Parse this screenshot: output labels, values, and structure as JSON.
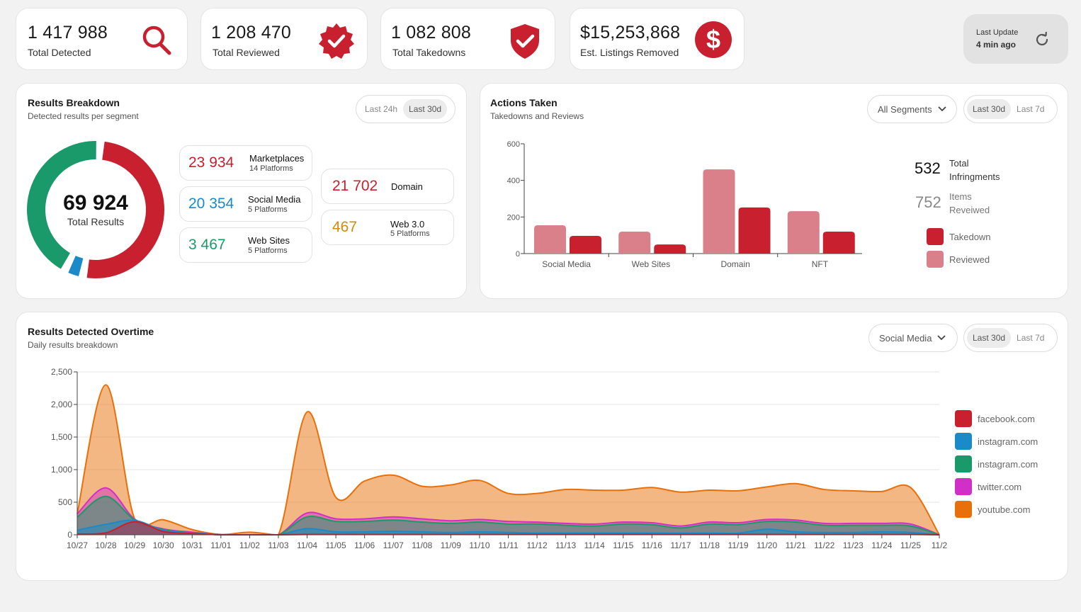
{
  "stats": [
    {
      "value": "1 417 988",
      "label": "Total Detected",
      "icon": "search-icon"
    },
    {
      "value": "1 208 470",
      "label": "Total Reviewed",
      "icon": "badge-check-icon"
    },
    {
      "value": "1 082 808",
      "label": "Total Takedowns",
      "icon": "shield-check-icon"
    },
    {
      "value": "$15,253,868",
      "label": "Est. Listings Removed",
      "icon": "dollar-icon"
    }
  ],
  "last_update": {
    "label": "Last Update",
    "value": "4 min ago",
    "icon": "refresh-icon"
  },
  "colors": {
    "accent": "#c8202f",
    "blue": "#1a8ac8",
    "green": "#1a9a6a",
    "gold": "#d08a10",
    "pink": "#d9808a"
  },
  "breakdown": {
    "title": "Results Breakdown",
    "subtitle": "Detected results per segment",
    "ranges": [
      "Last 24h",
      "Last 30d"
    ],
    "active_range": "Last 30d",
    "total_value": "69 924",
    "total_label": "Total Results",
    "segments": [
      {
        "value": "23 934",
        "name": "Marketplaces",
        "platforms": "14 Platforms",
        "color": "#c8202f"
      },
      {
        "value": "20 354",
        "name": "Social Media",
        "platforms": "5 Platforms",
        "color": "#1a8ac8"
      },
      {
        "value": "3 467",
        "name": "Web Sites",
        "platforms": "5 Platforms",
        "color": "#1a9a6a"
      },
      {
        "value": "21 702",
        "name": "Domain",
        "platforms": "",
        "color": "#c8202f"
      },
      {
        "value": "467",
        "name": "Web 3.0",
        "platforms": "5 Platforms",
        "color": "#d08a10"
      }
    ]
  },
  "actions": {
    "title": "Actions Taken",
    "subtitle": "Takedowns and Reviews",
    "segment_select": "All Segments",
    "ranges": [
      "Last 30d",
      "Last 7d"
    ],
    "active_range": "Last 30d",
    "total_infringments": {
      "value": "532",
      "label_line1": "Total",
      "label_line2": "Infringments"
    },
    "items_reviewed": {
      "value": "752",
      "label_line1": "Items",
      "label_line2": "Reveiwed"
    },
    "legend": [
      {
        "label": "Takedown",
        "color": "#c8202f"
      },
      {
        "label": "Reviewed",
        "color": "#d9808a"
      }
    ]
  },
  "overtime": {
    "title": "Results Detected Overtime",
    "subtitle": "Daily results breakdown",
    "segment_select": "Social Media",
    "ranges": [
      "Last 30d",
      "Last 7d"
    ],
    "active_range": "Last 30d",
    "legend": [
      {
        "label": "facebook.com",
        "color": "#c8202f"
      },
      {
        "label": "instagram.com",
        "color": "#1a8ac8"
      },
      {
        "label": "instagram.com",
        "color": "#1a9a6a"
      },
      {
        "label": "twitter.com",
        "color": "#d030c8"
      },
      {
        "label": "youtube.com",
        "color": "#e8700a"
      }
    ]
  },
  "chart_data": [
    {
      "type": "bar",
      "categories": [
        "Social Media",
        "Web Sites",
        "Domain",
        "NFT"
      ],
      "series": [
        {
          "name": "Reviewed",
          "values": [
            155,
            120,
            460,
            232
          ],
          "color": "#d9808a"
        },
        {
          "name": "Takedown",
          "values": [
            97,
            50,
            252,
            120
          ],
          "color": "#c8202f"
        }
      ],
      "yticks": [
        "0",
        "200",
        "400",
        "600"
      ],
      "ylim": [
        0,
        600
      ]
    },
    {
      "type": "area",
      "stacked": true,
      "x_ticks": [
        "10/27",
        "10/28",
        "10/29",
        "10/30",
        "10/31",
        "11/01",
        "11/02",
        "11/03",
        "11/04",
        "11/05",
        "11/06",
        "11/07",
        "11/08",
        "11/09",
        "11/10",
        "11/11",
        "11/12",
        "11/13",
        "11/14",
        "11/15",
        "11/16",
        "11/17",
        "11/18",
        "11/19",
        "11/20",
        "11/21",
        "11/22",
        "11/23",
        "11/24",
        "11/25",
        "11/2"
      ],
      "yticks": [
        "0",
        "500",
        "1,000",
        "1,500",
        "2,000",
        "2,500"
      ],
      "ylim": [
        0,
        2500
      ],
      "series": [
        {
          "name": "facebook.com",
          "color": "#c8202f",
          "values": [
            10,
            30,
            200,
            50,
            20,
            0,
            0,
            0,
            5,
            5,
            5,
            5,
            5,
            5,
            5,
            5,
            5,
            5,
            5,
            5,
            5,
            5,
            5,
            5,
            5,
            5,
            5,
            5,
            5,
            5,
            0
          ]
        },
        {
          "name": "instagram.com",
          "color": "#1a8ac8",
          "values": [
            60,
            130,
            20,
            20,
            10,
            0,
            0,
            0,
            90,
            40,
            40,
            50,
            40,
            30,
            40,
            30,
            20,
            20,
            20,
            20,
            20,
            20,
            20,
            20,
            80,
            40,
            30,
            30,
            40,
            30,
            0
          ]
        },
        {
          "name": "instagram.com",
          "color": "#1a9a6a",
          "values": [
            200,
            430,
            10,
            10,
            0,
            0,
            0,
            0,
            180,
            160,
            160,
            170,
            150,
            140,
            150,
            130,
            140,
            120,
            110,
            140,
            130,
            80,
            140,
            130,
            120,
            150,
            110,
            110,
            100,
            100,
            0
          ]
        },
        {
          "name": "twitter.com",
          "color": "#d030c8",
          "values": [
            50,
            130,
            10,
            10,
            10,
            0,
            0,
            0,
            60,
            40,
            40,
            50,
            50,
            40,
            40,
            40,
            30,
            30,
            30,
            30,
            30,
            30,
            30,
            30,
            30,
            30,
            30,
            30,
            30,
            30,
            0
          ]
        },
        {
          "name": "youtube.com",
          "color": "#e8700a",
          "values": [
            0,
            1580,
            0,
            140,
            40,
            5,
            40,
            0,
            1550,
            330,
            580,
            640,
            500,
            550,
            600,
            430,
            440,
            520,
            520,
            490,
            540,
            520,
            490,
            490,
            500,
            560,
            520,
            500,
            490,
            560,
            0
          ]
        }
      ]
    }
  ]
}
